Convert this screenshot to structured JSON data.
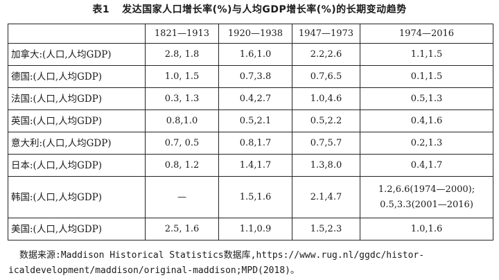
{
  "caption": {
    "number": "表1",
    "title": "发达国家人口增长率(%)与人均GDP增长率(%)的长期变动趋势"
  },
  "table": {
    "columns": [
      "",
      "1821—1913",
      "1920—1938",
      "1947—1973",
      "1974—2016"
    ],
    "rows": [
      {
        "label": "加拿大:(人口,人均GDP)",
        "cells": [
          "2.8, 1.8",
          "1.6,1.0",
          "2.2,2.6",
          "1.1,1.5"
        ]
      },
      {
        "label": "德国:(人口,人均GDP)",
        "cells": [
          "1.0, 1.5",
          "0.7,3.8",
          "0.7,6.5",
          "0.1,1.5"
        ]
      },
      {
        "label": "法国:(人口,人均GDP)",
        "cells": [
          "0.3, 1.3",
          "0.4,2.7",
          "1.0,4.6",
          "0.5,1.3"
        ]
      },
      {
        "label": "英国:(人口,人均GDP)",
        "cells": [
          "0.8,1.0",
          "0.5,2.1",
          "0.5,2.2",
          "0.4,1.6"
        ]
      },
      {
        "label": "意大利:(人口,人均GDP)",
        "cells": [
          "0.7, 0.5",
          "0.8,1.7",
          "0.7,5.7",
          "0.2,1.3"
        ]
      },
      {
        "label": "日本:(人口,人均GDP)",
        "cells": [
          "0.8, 1.2",
          "1.4,1.7",
          "1.3,8.0",
          "0.4,1.7"
        ]
      },
      {
        "label": "韩国:(人口,人均GDP)",
        "cells": [
          "—",
          "1.5,1.6",
          "2.1,4.7",
          "1.2,6.6(1974—2000);\n0.5,3.3(2001—2016)"
        ],
        "tall": true
      },
      {
        "label": "美国:(人口,人均GDP)",
        "cells": [
          "2.5, 1.6",
          "1.1,0.9",
          "1.5,2.3",
          "1.0,1.6"
        ]
      }
    ]
  },
  "note": {
    "line1": "数据来源:Maddison Historical Statistics数据库,https://www.rug.nl/ggdc/histor-",
    "line2": "icaldevelopment/maddison/original-maddison;MPD(2018)。"
  }
}
